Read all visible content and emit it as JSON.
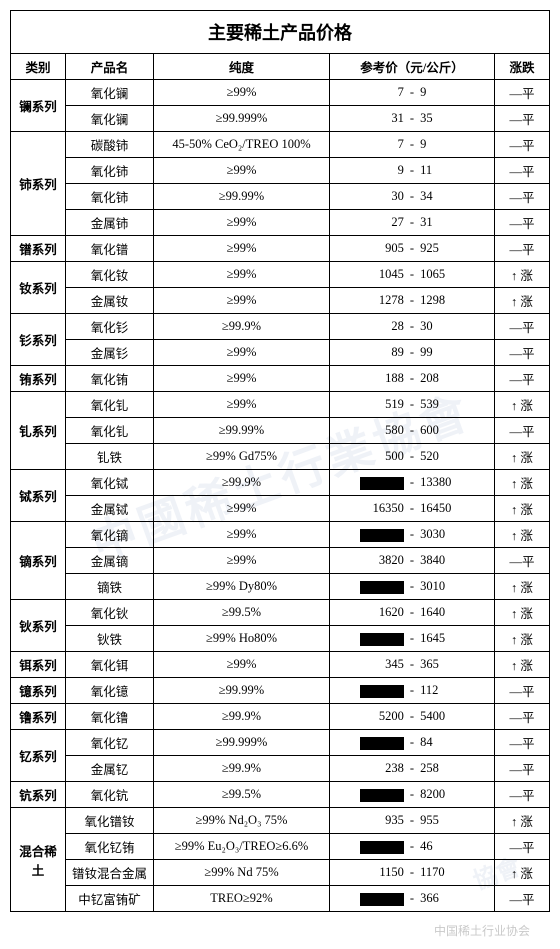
{
  "title": "主要稀土产品价格",
  "headers": {
    "category": "类别",
    "product": "产品名",
    "purity": "纯度",
    "price": "参考价（元/公斤）",
    "trend": "涨跌"
  },
  "trend_labels": {
    "flat": "—平",
    "up": "↑ 涨"
  },
  "groups": [
    {
      "category": "镧系列",
      "rows": [
        {
          "name": "氧化镧",
          "purity": "≥99%",
          "low": "7",
          "high": "9",
          "trend": "flat"
        },
        {
          "name": "氧化镧",
          "purity": "≥99.999%",
          "low": "31",
          "high": "35",
          "trend": "flat"
        }
      ]
    },
    {
      "category": "铈系列",
      "rows": [
        {
          "name": "碳酸铈",
          "purity": "45-50% CeO₂/TREO 100%",
          "low": "7",
          "high": "9",
          "trend": "flat"
        },
        {
          "name": "氧化铈",
          "purity": "≥99%",
          "low": "9",
          "high": "11",
          "trend": "flat"
        },
        {
          "name": "氧化铈",
          "purity": "≥99.99%",
          "low": "30",
          "high": "34",
          "trend": "flat"
        },
        {
          "name": "金属铈",
          "purity": "≥99%",
          "low": "27",
          "high": "31",
          "trend": "flat"
        }
      ]
    },
    {
      "category": "镨系列",
      "rows": [
        {
          "name": "氧化镨",
          "purity": "≥99%",
          "low": "905",
          "high": "925",
          "trend": "flat"
        }
      ]
    },
    {
      "category": "钕系列",
      "rows": [
        {
          "name": "氧化钕",
          "purity": "≥99%",
          "low": "1045",
          "high": "1065",
          "trend": "up"
        },
        {
          "name": "金属钕",
          "purity": "≥99%",
          "low": "1278",
          "high": "1298",
          "trend": "up"
        }
      ]
    },
    {
      "category": "钐系列",
      "rows": [
        {
          "name": "氧化钐",
          "purity": "≥99.9%",
          "low": "28",
          "high": "30",
          "trend": "flat"
        },
        {
          "name": "金属钐",
          "purity": "≥99%",
          "low": "89",
          "high": "99",
          "trend": "flat"
        }
      ]
    },
    {
      "category": "铕系列",
      "rows": [
        {
          "name": "氧化铕",
          "purity": "≥99%",
          "low": "188",
          "high": "208",
          "trend": "flat"
        }
      ]
    },
    {
      "category": "钆系列",
      "rows": [
        {
          "name": "氧化钆",
          "purity": "≥99%",
          "low": "519",
          "high": "539",
          "trend": "up"
        },
        {
          "name": "氧化钆",
          "purity": "≥99.99%",
          "low": "580",
          "high": "600",
          "trend": "flat"
        },
        {
          "name": "钆铁",
          "purity": "≥99% Gd75%",
          "low": "500",
          "high": "520",
          "trend": "up"
        }
      ]
    },
    {
      "category": "铽系列",
      "rows": [
        {
          "name": "氧化铽",
          "purity": "≥99.9%",
          "low": null,
          "high": "13380",
          "trend": "up"
        },
        {
          "name": "金属铽",
          "purity": "≥99%",
          "low": "16350",
          "high": "16450",
          "trend": "up"
        }
      ]
    },
    {
      "category": "镝系列",
      "rows": [
        {
          "name": "氧化镝",
          "purity": "≥99%",
          "low": null,
          "high": "3030",
          "trend": "up"
        },
        {
          "name": "金属镝",
          "purity": "≥99%",
          "low": "3820",
          "high": "3840",
          "trend": "flat"
        },
        {
          "name": "镝铁",
          "purity": "≥99% Dy80%",
          "low": null,
          "high": "3010",
          "trend": "up"
        }
      ]
    },
    {
      "category": "钬系列",
      "rows": [
        {
          "name": "氧化钬",
          "purity": "≥99.5%",
          "low": "1620",
          "high": "1640",
          "trend": "up"
        },
        {
          "name": "钬铁",
          "purity": "≥99% Ho80%",
          "low": null,
          "high": "1645",
          "trend": "up"
        }
      ]
    },
    {
      "category": "铒系列",
      "rows": [
        {
          "name": "氧化铒",
          "purity": "≥99%",
          "low": "345",
          "high": "365",
          "trend": "up"
        }
      ]
    },
    {
      "category": "镱系列",
      "rows": [
        {
          "name": "氧化镱",
          "purity": "≥99.99%",
          "low": null,
          "high": "112",
          "trend": "flat"
        }
      ]
    },
    {
      "category": "镥系列",
      "rows": [
        {
          "name": "氧化镥",
          "purity": "≥99.9%",
          "low": "5200",
          "high": "5400",
          "trend": "flat"
        }
      ]
    },
    {
      "category": "钇系列",
      "rows": [
        {
          "name": "氧化钇",
          "purity": "≥99.999%",
          "low": null,
          "high": "84",
          "trend": "flat"
        },
        {
          "name": "金属钇",
          "purity": "≥99.9%",
          "low": "238",
          "high": "258",
          "trend": "flat"
        }
      ]
    },
    {
      "category": "钪系列",
      "rows": [
        {
          "name": "氧化钪",
          "purity": "≥99.5%",
          "low": null,
          "high": "8200",
          "trend": "flat"
        }
      ]
    },
    {
      "category": "混合稀土",
      "rows": [
        {
          "name": "氧化镨钕",
          "purity": "≥99%  Nd₂O₃  75%",
          "low": "935",
          "high": "955",
          "trend": "up"
        },
        {
          "name": "氧化钇铕",
          "purity": "≥99% Eu₂O₃/TREO≥6.6%",
          "low": null,
          "high": "46",
          "trend": "flat"
        },
        {
          "name": "镨钕混合金属",
          "purity": "≥99% Nd 75%",
          "low": "1150",
          "high": "1170",
          "trend": "up"
        },
        {
          "name": "中钇富铕矿",
          "purity": "TREO≥92%",
          "low": null,
          "high": "366",
          "trend": "flat"
        }
      ]
    }
  ],
  "footer": "中国稀土行业协会"
}
